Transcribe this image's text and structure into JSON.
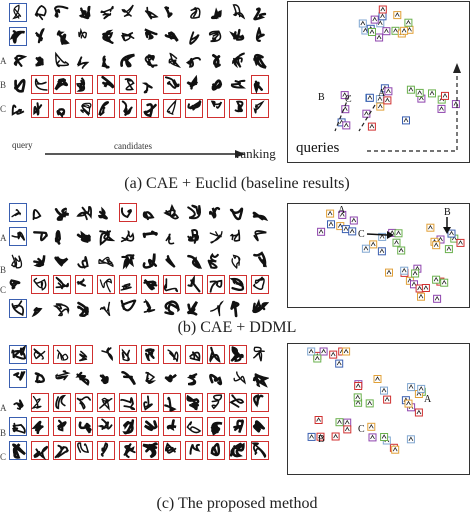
{
  "panels": [
    {
      "id": "a",
      "caption": "(a) CAE + Euclid (baseline results)",
      "row_labels": [
        "",
        "",
        "A",
        "B",
        "C"
      ],
      "axis": {
        "query": "query",
        "candidates": "candidates",
        "ranking": "ranking"
      },
      "scatter_labels": {
        "queries": "queries",
        "A": "A",
        "B": "B",
        "C": "C"
      },
      "highlight": [
        [
          1,
          0,
          0,
          0,
          0,
          0,
          0,
          0,
          0,
          0,
          0,
          0
        ],
        [
          1,
          0,
          0,
          0,
          0,
          0,
          0,
          0,
          0,
          0,
          0,
          0
        ],
        [
          0,
          0,
          0,
          0,
          0,
          0,
          0,
          0,
          0,
          0,
          0,
          0
        ],
        [
          0,
          1,
          1,
          1,
          1,
          1,
          0,
          1,
          0,
          0,
          0,
          1
        ],
        [
          0,
          1,
          1,
          1,
          1,
          1,
          1,
          1,
          1,
          1,
          1,
          1
        ]
      ]
    },
    {
      "id": "b",
      "caption": "(b) CAE + DDML",
      "row_labels": [
        "",
        "",
        "A",
        "B",
        "C"
      ],
      "scatter_labels": {
        "A": "A",
        "B": "B",
        "C": "C"
      },
      "highlight": [
        [
          1,
          0,
          0,
          0,
          0,
          1,
          0,
          0,
          0,
          0,
          0,
          0
        ],
        [
          1,
          0,
          0,
          0,
          0,
          0,
          0,
          0,
          0,
          0,
          0,
          0
        ],
        [
          0,
          0,
          0,
          0,
          0,
          0,
          0,
          0,
          0,
          0,
          0,
          0
        ],
        [
          0,
          1,
          1,
          1,
          1,
          1,
          1,
          1,
          1,
          1,
          1,
          1
        ],
        [
          1,
          0,
          0,
          0,
          0,
          0,
          0,
          0,
          0,
          0,
          0,
          0
        ]
      ]
    },
    {
      "id": "c",
      "caption": "(c) The proposed method",
      "row_labels": [
        "",
        "",
        "A",
        "B",
        "C"
      ],
      "scatter_labels": {
        "A": "A",
        "B": "B",
        "C": "C"
      },
      "highlight": [
        [
          1,
          1,
          1,
          1,
          0,
          1,
          1,
          1,
          1,
          1,
          1,
          0
        ],
        [
          1,
          0,
          0,
          0,
          0,
          0,
          0,
          0,
          0,
          0,
          0,
          0
        ],
        [
          0,
          1,
          1,
          1,
          1,
          1,
          1,
          1,
          1,
          1,
          1,
          1
        ],
        [
          1,
          1,
          1,
          1,
          1,
          1,
          1,
          1,
          1,
          1,
          1,
          1
        ],
        [
          1,
          1,
          1,
          1,
          1,
          1,
          1,
          1,
          1,
          1,
          1,
          1
        ]
      ]
    }
  ],
  "colors": {
    "query_box": "#3a5fb0",
    "match_box": "#d03030",
    "stroke": "#111111"
  }
}
